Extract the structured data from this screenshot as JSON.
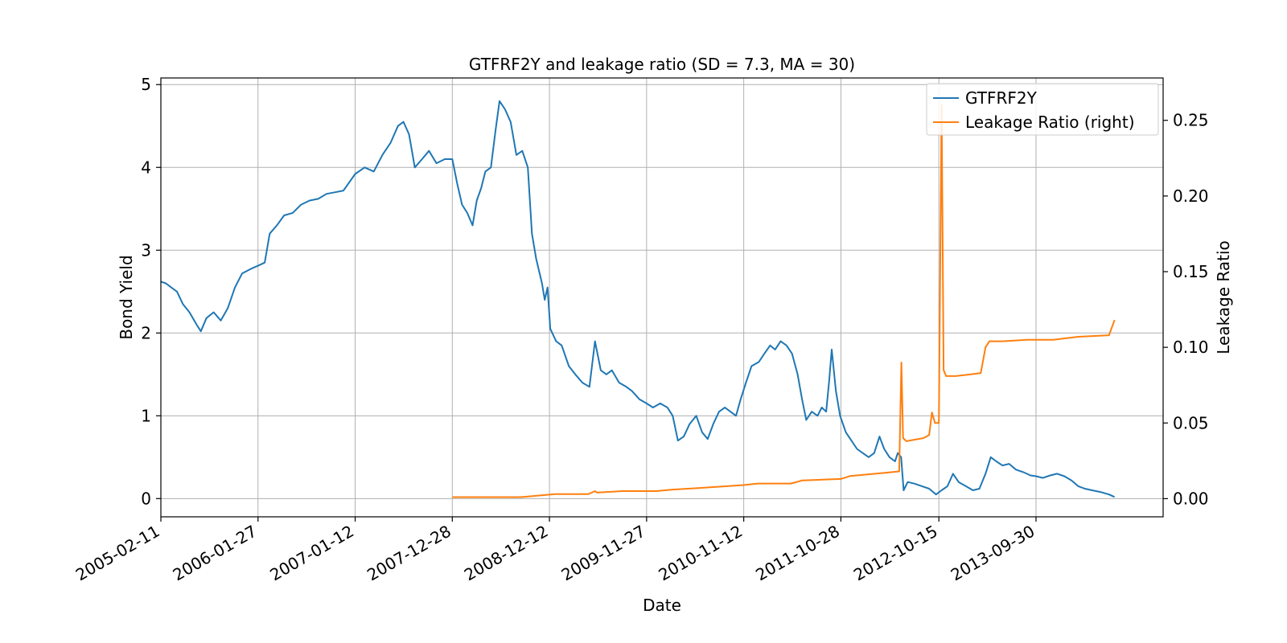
{
  "chart_data": {
    "type": "line",
    "title": "GTFRF2Y and leakage ratio (SD = 7.3, MA = 30)",
    "xlabel": "Date",
    "ylabel": "Bond Yield",
    "ylabel_right": "Leakage Ratio",
    "x_range": [
      "2005-02-11",
      "2015-01-01"
    ],
    "ylim": [
      -0.22,
      5.08
    ],
    "ylim_right": [
      -0.012,
      0.278
    ],
    "grid": true,
    "legend_position": "top-right",
    "x_ticks": [
      "2005-02-11",
      "2006-01-27",
      "2007-01-12",
      "2007-12-28",
      "2008-12-12",
      "2009-11-27",
      "2010-11-12",
      "2011-10-28",
      "2012-10-15",
      "2013-09-30"
    ],
    "y_ticks": [
      "0",
      "1",
      "2",
      "3",
      "4",
      "5"
    ],
    "y_ticks_right": [
      "0.00",
      "0.05",
      "0.10",
      "0.15",
      "0.20",
      "0.25"
    ],
    "series": [
      {
        "name": "GTFRF2Y",
        "axis": "left",
        "color": "#1f77b4",
        "points": [
          [
            "2005-02-11",
            2.62
          ],
          [
            "2005-03-01",
            2.6
          ],
          [
            "2005-03-20",
            2.55
          ],
          [
            "2005-04-10",
            2.5
          ],
          [
            "2005-05-01",
            2.35
          ],
          [
            "2005-05-25",
            2.25
          ],
          [
            "2005-06-20",
            2.1
          ],
          [
            "2005-07-05",
            2.02
          ],
          [
            "2005-07-25",
            2.18
          ],
          [
            "2005-08-20",
            2.25
          ],
          [
            "2005-09-15",
            2.15
          ],
          [
            "2005-10-10",
            2.3
          ],
          [
            "2005-11-05",
            2.55
          ],
          [
            "2005-12-01",
            2.72
          ],
          [
            "2006-01-05",
            2.78
          ],
          [
            "2006-02-01",
            2.82
          ],
          [
            "2006-02-20",
            2.85
          ],
          [
            "2006-03-10",
            3.2
          ],
          [
            "2006-04-05",
            3.3
          ],
          [
            "2006-05-01",
            3.42
          ],
          [
            "2006-06-01",
            3.45
          ],
          [
            "2006-07-01",
            3.55
          ],
          [
            "2006-08-01",
            3.6
          ],
          [
            "2006-09-01",
            3.62
          ],
          [
            "2006-10-01",
            3.68
          ],
          [
            "2006-11-01",
            3.7
          ],
          [
            "2006-12-01",
            3.72
          ],
          [
            "2007-01-12",
            3.92
          ],
          [
            "2007-02-15",
            4.0
          ],
          [
            "2007-03-20",
            3.95
          ],
          [
            "2007-04-20",
            4.15
          ],
          [
            "2007-05-20",
            4.3
          ],
          [
            "2007-06-15",
            4.5
          ],
          [
            "2007-07-05",
            4.55
          ],
          [
            "2007-07-25",
            4.4
          ],
          [
            "2007-08-15",
            4.0
          ],
          [
            "2007-09-10",
            4.1
          ],
          [
            "2007-10-05",
            4.2
          ],
          [
            "2007-11-01",
            4.05
          ],
          [
            "2007-12-01",
            4.1
          ],
          [
            "2007-12-28",
            4.1
          ],
          [
            "2008-01-15",
            3.8
          ],
          [
            "2008-02-01",
            3.55
          ],
          [
            "2008-02-20",
            3.45
          ],
          [
            "2008-03-10",
            3.3
          ],
          [
            "2008-03-25",
            3.6
          ],
          [
            "2008-04-10",
            3.75
          ],
          [
            "2008-04-25",
            3.95
          ],
          [
            "2008-05-15",
            4.0
          ],
          [
            "2008-06-01",
            4.45
          ],
          [
            "2008-06-15",
            4.8
          ],
          [
            "2008-07-05",
            4.7
          ],
          [
            "2008-07-25",
            4.55
          ],
          [
            "2008-08-15",
            4.15
          ],
          [
            "2008-09-05",
            4.2
          ],
          [
            "2008-09-25",
            4.0
          ],
          [
            "2008-10-10",
            3.2
          ],
          [
            "2008-10-25",
            2.9
          ],
          [
            "2008-11-15",
            2.6
          ],
          [
            "2008-11-25",
            2.4
          ],
          [
            "2008-12-05",
            2.55
          ],
          [
            "2008-12-15",
            2.05
          ],
          [
            "2009-01-05",
            1.9
          ],
          [
            "2009-01-25",
            1.85
          ],
          [
            "2009-02-20",
            1.6
          ],
          [
            "2009-03-15",
            1.5
          ],
          [
            "2009-04-10",
            1.4
          ],
          [
            "2009-05-05",
            1.35
          ],
          [
            "2009-05-25",
            1.9
          ],
          [
            "2009-06-15",
            1.55
          ],
          [
            "2009-07-05",
            1.5
          ],
          [
            "2009-07-25",
            1.55
          ],
          [
            "2009-08-20",
            1.4
          ],
          [
            "2009-09-15",
            1.35
          ],
          [
            "2009-10-05",
            1.3
          ],
          [
            "2009-11-01",
            1.2
          ],
          [
            "2009-11-27",
            1.15
          ],
          [
            "2009-12-20",
            1.1
          ],
          [
            "2010-01-15",
            1.15
          ],
          [
            "2010-02-10",
            1.1
          ],
          [
            "2010-03-01",
            1.0
          ],
          [
            "2010-03-20",
            0.7
          ],
          [
            "2010-04-10",
            0.75
          ],
          [
            "2010-05-01",
            0.9
          ],
          [
            "2010-05-25",
            1.0
          ],
          [
            "2010-06-15",
            0.8
          ],
          [
            "2010-07-05",
            0.72
          ],
          [
            "2010-07-25",
            0.9
          ],
          [
            "2010-08-15",
            1.05
          ],
          [
            "2010-09-05",
            1.1
          ],
          [
            "2010-09-25",
            1.05
          ],
          [
            "2010-10-15",
            1.0
          ],
          [
            "2010-11-01",
            1.2
          ],
          [
            "2010-11-20",
            1.4
          ],
          [
            "2010-12-10",
            1.6
          ],
          [
            "2011-01-05",
            1.65
          ],
          [
            "2011-01-25",
            1.75
          ],
          [
            "2011-02-15",
            1.85
          ],
          [
            "2011-03-05",
            1.8
          ],
          [
            "2011-03-25",
            1.9
          ],
          [
            "2011-04-15",
            1.85
          ],
          [
            "2011-05-05",
            1.75
          ],
          [
            "2011-05-25",
            1.5
          ],
          [
            "2011-06-10",
            1.2
          ],
          [
            "2011-06-25",
            0.95
          ],
          [
            "2011-07-15",
            1.05
          ],
          [
            "2011-08-05",
            1.0
          ],
          [
            "2011-08-20",
            1.1
          ],
          [
            "2011-09-05",
            1.05
          ],
          [
            "2011-09-15",
            1.4
          ],
          [
            "2011-09-25",
            1.8
          ],
          [
            "2011-10-10",
            1.3
          ],
          [
            "2011-10-25",
            1.0
          ],
          [
            "2011-11-15",
            0.8
          ],
          [
            "2011-12-05",
            0.7
          ],
          [
            "2011-12-25",
            0.6
          ],
          [
            "2012-01-15",
            0.55
          ],
          [
            "2012-02-05",
            0.5
          ],
          [
            "2012-02-25",
            0.55
          ],
          [
            "2012-03-15",
            0.75
          ],
          [
            "2012-04-01",
            0.6
          ],
          [
            "2012-04-20",
            0.5
          ],
          [
            "2012-05-10",
            0.45
          ],
          [
            "2012-05-20",
            0.55
          ],
          [
            "2012-06-01",
            0.5
          ],
          [
            "2012-06-10",
            0.1
          ],
          [
            "2012-06-25",
            0.2
          ],
          [
            "2012-07-20",
            0.18
          ],
          [
            "2012-08-15",
            0.15
          ],
          [
            "2012-09-10",
            0.12
          ],
          [
            "2012-10-05",
            0.05
          ],
          [
            "2012-10-25",
            0.1
          ],
          [
            "2012-11-15",
            0.15
          ],
          [
            "2012-12-05",
            0.3
          ],
          [
            "2012-12-25",
            0.2
          ],
          [
            "2013-01-20",
            0.15
          ],
          [
            "2013-02-15",
            0.1
          ],
          [
            "2013-03-10",
            0.12
          ],
          [
            "2013-04-01",
            0.3
          ],
          [
            "2013-04-20",
            0.5
          ],
          [
            "2013-05-10",
            0.45
          ],
          [
            "2013-06-01",
            0.4
          ],
          [
            "2013-06-25",
            0.42
          ],
          [
            "2013-07-20",
            0.35
          ],
          [
            "2013-08-15",
            0.32
          ],
          [
            "2013-09-10",
            0.28
          ],
          [
            "2013-09-30",
            0.27
          ],
          [
            "2013-10-25",
            0.25
          ],
          [
            "2013-11-20",
            0.28
          ],
          [
            "2013-12-15",
            0.3
          ],
          [
            "2014-01-10",
            0.27
          ],
          [
            "2014-02-05",
            0.22
          ],
          [
            "2014-03-01",
            0.15
          ],
          [
            "2014-03-25",
            0.12
          ],
          [
            "2014-04-20",
            0.1
          ],
          [
            "2014-05-20",
            0.08
          ],
          [
            "2014-06-20",
            0.05
          ],
          [
            "2014-07-10",
            0.02
          ]
        ]
      },
      {
        "name": "Leakage Ratio (right)",
        "axis": "right",
        "color": "#ff7f0e",
        "points": [
          [
            "2007-12-28",
            0.001
          ],
          [
            "2008-03-01",
            0.001
          ],
          [
            "2008-06-01",
            0.001
          ],
          [
            "2008-09-01",
            0.001
          ],
          [
            "2008-11-01",
            0.002
          ],
          [
            "2009-01-01",
            0.003
          ],
          [
            "2009-05-01",
            0.003
          ],
          [
            "2009-05-25",
            0.005
          ],
          [
            "2009-06-01",
            0.004
          ],
          [
            "2009-09-01",
            0.005
          ],
          [
            "2010-01-01",
            0.005
          ],
          [
            "2010-03-01",
            0.006
          ],
          [
            "2010-06-01",
            0.007
          ],
          [
            "2010-11-12",
            0.009
          ],
          [
            "2011-01-01",
            0.01
          ],
          [
            "2011-05-01",
            0.01
          ],
          [
            "2011-06-10",
            0.012
          ],
          [
            "2011-10-28",
            0.013
          ],
          [
            "2011-12-01",
            0.015
          ],
          [
            "2012-02-01",
            0.016
          ],
          [
            "2012-04-01",
            0.017
          ],
          [
            "2012-05-25",
            0.018
          ],
          [
            "2012-06-02",
            0.09
          ],
          [
            "2012-06-08",
            0.04
          ],
          [
            "2012-06-20",
            0.038
          ],
          [
            "2012-07-20",
            0.039
          ],
          [
            "2012-08-20",
            0.04
          ],
          [
            "2012-09-10",
            0.042
          ],
          [
            "2012-09-20",
            0.057
          ],
          [
            "2012-10-01",
            0.05
          ],
          [
            "2012-10-15",
            0.05
          ],
          [
            "2012-10-25",
            0.26
          ],
          [
            "2012-11-01",
            0.085
          ],
          [
            "2012-11-10",
            0.081
          ],
          [
            "2012-12-15",
            0.081
          ],
          [
            "2013-02-01",
            0.082
          ],
          [
            "2013-03-15",
            0.083
          ],
          [
            "2013-04-01",
            0.1
          ],
          [
            "2013-04-15",
            0.104
          ],
          [
            "2013-06-01",
            0.104
          ],
          [
            "2013-09-01",
            0.105
          ],
          [
            "2013-12-01",
            0.105
          ],
          [
            "2014-03-01",
            0.107
          ],
          [
            "2014-06-20",
            0.108
          ],
          [
            "2014-07-10",
            0.118
          ]
        ]
      }
    ]
  }
}
